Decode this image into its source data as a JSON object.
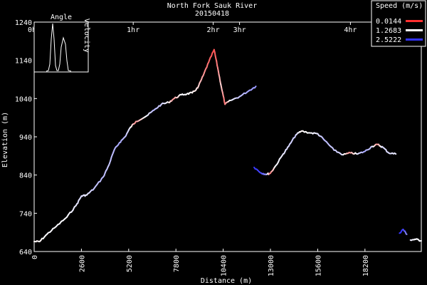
{
  "chart_data": {
    "type": "line",
    "title": "North Fork Sauk River",
    "subtitle": "20150418",
    "xlabel": "Distance (m)",
    "ylabel": "Elevation (m)",
    "xlim": [
      0,
      21300
    ],
    "ylim": [
      640,
      1240
    ],
    "x_ticks": [
      0,
      2600,
      5200,
      7800,
      10400,
      13000,
      15600,
      18200
    ],
    "y_ticks": [
      640,
      740,
      840,
      940,
      1040,
      1140,
      1240
    ],
    "time_ticks": [
      {
        "label": "0hr",
        "x": 0
      },
      {
        "label": "1hr",
        "x": 5450
      },
      {
        "label": "2hr",
        "x": 9850
      },
      {
        "label": "3hr",
        "x": 11300
      },
      {
        "label": "4hr",
        "x": 17400
      }
    ],
    "legend": {
      "title": "Speed (m/s)",
      "placement": "top-right",
      "entries": [
        {
          "label": "0.0144",
          "color": "#ff3030"
        },
        {
          "label": "1.2683",
          "color": "#ffffff"
        },
        {
          "label": "2.5222",
          "color": "#3333ff"
        }
      ]
    },
    "series": [
      {
        "segment": 1,
        "points": [
          [
            0,
            666,
            1.2
          ],
          [
            300,
            666,
            1.2
          ],
          [
            700,
            685,
            1.3
          ],
          [
            1200,
            705,
            1.3
          ],
          [
            1800,
            730,
            1.3
          ],
          [
            2300,
            760,
            1.4
          ],
          [
            2600,
            785,
            1.5
          ],
          [
            2900,
            788,
            1.4
          ],
          [
            3300,
            805,
            1.6
          ],
          [
            3800,
            835,
            1.7
          ],
          [
            4100,
            865,
            1.6
          ],
          [
            4400,
            905,
            1.7
          ],
          [
            4700,
            925,
            1.8
          ],
          [
            5000,
            940,
            1.7
          ],
          [
            5300,
            965,
            1.4
          ],
          [
            5600,
            980,
            0.6
          ],
          [
            6200,
            995,
            1.3
          ],
          [
            6600,
            1010,
            1.7
          ],
          [
            7000,
            1025,
            1.6
          ],
          [
            7400,
            1030,
            1.3
          ],
          [
            7700,
            1040,
            0.6
          ],
          [
            8100,
            1050,
            1.3
          ],
          [
            8400,
            1052,
            1.3
          ],
          [
            8700,
            1055,
            1.2
          ],
          [
            9000,
            1068,
            1.1
          ],
          [
            9300,
            1100,
            0.7
          ],
          [
            9600,
            1135,
            0.4
          ],
          [
            9900,
            1168,
            0.2
          ],
          [
            10100,
            1120,
            0.5
          ],
          [
            10300,
            1070,
            1.0
          ],
          [
            10500,
            1025,
            0.4
          ],
          [
            10800,
            1035,
            1.3
          ],
          [
            11300,
            1045,
            1.6
          ],
          [
            11800,
            1060,
            1.8
          ],
          [
            12200,
            1072,
            1.9
          ]
        ]
      },
      {
        "segment": 2,
        "points": [
          [
            12100,
            860,
            2.5
          ],
          [
            12500,
            845,
            2.4
          ],
          [
            12800,
            842,
            1.9
          ],
          [
            13000,
            845,
            0.4
          ],
          [
            13300,
            865,
            1.3
          ],
          [
            13700,
            895,
            1.4
          ],
          [
            14000,
            915,
            1.5
          ],
          [
            14400,
            945,
            1.6
          ],
          [
            14700,
            955,
            1.2
          ],
          [
            15200,
            950,
            1.3
          ],
          [
            15600,
            948,
            1.4
          ],
          [
            16000,
            930,
            1.7
          ],
          [
            16500,
            905,
            1.6
          ],
          [
            17000,
            893,
            1.5
          ],
          [
            17400,
            898,
            0.6
          ],
          [
            17800,
            895,
            1.4
          ],
          [
            18200,
            902,
            1.8
          ],
          [
            18600,
            915,
            1.6
          ],
          [
            18900,
            920,
            0.6
          ],
          [
            19200,
            912,
            1.5
          ],
          [
            19500,
            898,
            1.5
          ],
          [
            19900,
            895,
            1.4
          ]
        ]
      },
      {
        "segment": 3,
        "points": [
          [
            20100,
            688,
            2.5
          ],
          [
            20300,
            698,
            2.5
          ],
          [
            20500,
            685,
            2.0
          ]
        ]
      },
      {
        "segment": 4,
        "points": [
          [
            20700,
            670,
            1.4
          ],
          [
            21000,
            672,
            1.3
          ],
          [
            21300,
            668,
            1.3
          ]
        ]
      }
    ],
    "inset": {
      "title": "Angle",
      "ylabel": "Velocity"
    }
  }
}
